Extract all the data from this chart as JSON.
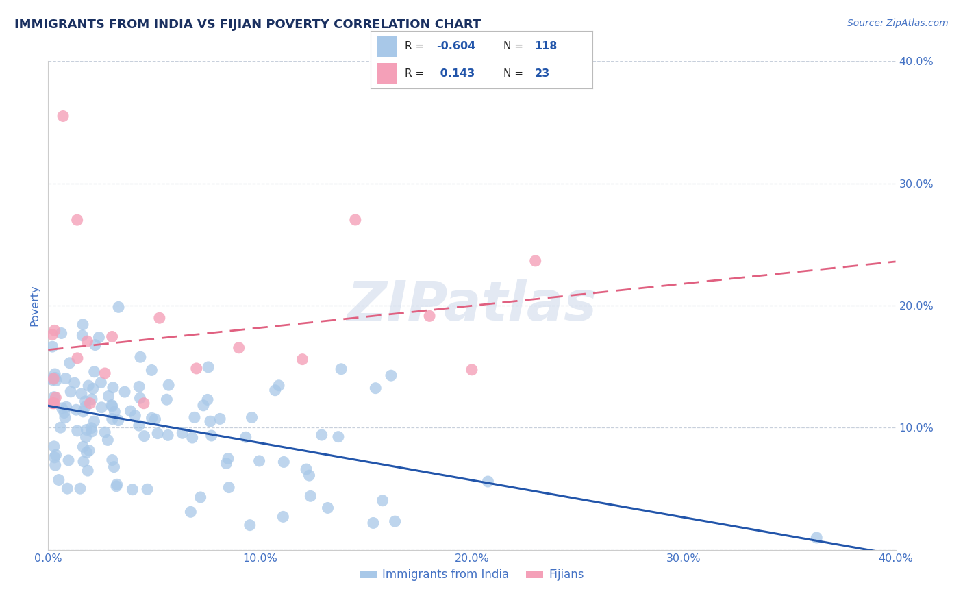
{
  "title": "IMMIGRANTS FROM INDIA VS FIJIAN POVERTY CORRELATION CHART",
  "source_text": "Source: ZipAtlas.com",
  "ylabel": "Poverty",
  "watermark": "ZIPatlas",
  "xmin": 0.0,
  "xmax": 0.4,
  "ymin": 0.0,
  "ymax": 0.4,
  "ytick_vals": [
    0.0,
    0.1,
    0.2,
    0.3,
    0.4
  ],
  "ytick_labels": [
    "",
    "10.0%",
    "20.0%",
    "30.0%",
    "40.0%"
  ],
  "xtick_vals": [
    0.0,
    0.1,
    0.2,
    0.3,
    0.4
  ],
  "xtick_labels": [
    "0.0%",
    "10.0%",
    "20.0%",
    "30.0%",
    "40.0%"
  ],
  "blue_color": "#a8c8e8",
  "pink_color": "#f4a0b8",
  "blue_line_color": "#2255aa",
  "pink_line_color": "#e06080",
  "axis_color": "#4472c4",
  "grid_color": "#c8d0dc",
  "legend_label1": "Immigrants from India",
  "legend_label2": "Fijians",
  "blue_r": -0.604,
  "blue_n": 118,
  "pink_r": 0.143,
  "pink_n": 23,
  "background_color": "#ffffff",
  "title_color": "#1a3060",
  "title_fontsize": 13,
  "blue_seed": 77,
  "pink_seed": 42
}
